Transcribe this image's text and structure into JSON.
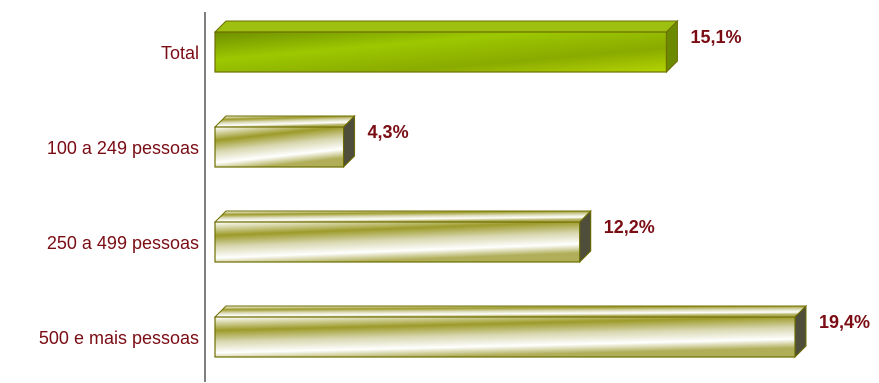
{
  "chart_data": {
    "type": "bar",
    "orientation": "horizontal",
    "categories": [
      "Total",
      "100 a 249 pessoas",
      "250 a 499 pessoas",
      "500 e mais pessoas"
    ],
    "values": [
      15.1,
      4.3,
      12.2,
      19.4
    ],
    "value_labels": [
      "15,1%",
      "4,3%",
      "12,2%",
      "19,4%"
    ],
    "value_unit": "%",
    "xlim": [
      0,
      19.4
    ],
    "grid": false,
    "legend": "none",
    "colors": {
      "total_bar": "#8db800",
      "bar_gradient_light": "#ffffff",
      "bar_gradient_dark": "#8a8a14",
      "bar_outline": "#6e6e00",
      "label_text": "#7a0c14",
      "axis": "#000000"
    }
  }
}
